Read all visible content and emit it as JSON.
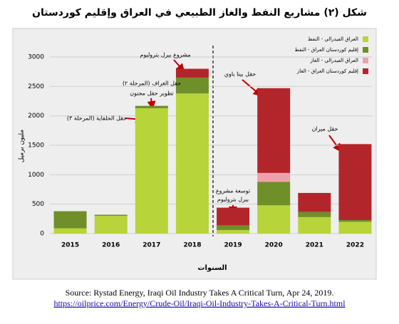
{
  "chart_data": {
    "type": "stacked-bar",
    "title": "شكل (٢) مشاريع النفط والغاز الطبيعي في العراق وإقليم كوردستان",
    "y_label": "مليون برميل",
    "x_label": "السنوات",
    "categories": [
      "2015",
      "2016",
      "2017",
      "2018",
      "2019",
      "2020",
      "2021",
      "2022"
    ],
    "series": [
      {
        "name": "العراق الفيدرالي - النفط",
        "color": "#b7d43a",
        "values": [
          90,
          300,
          2130,
          2380,
          60,
          480,
          280,
          200
        ]
      },
      {
        "name": "إقليم كوردستان العراق - النفط",
        "color": "#6f8f28",
        "values": [
          290,
          20,
          40,
          270,
          80,
          400,
          90,
          30
        ]
      },
      {
        "name": "العراق الفيدرالي - الغاز",
        "color": "#f0a0aa",
        "values": [
          0,
          0,
          0,
          0,
          0,
          150,
          0,
          0
        ]
      },
      {
        "name": "إقليم كوردستان العراق - الغاز",
        "color": "#b2262b",
        "values": [
          0,
          0,
          0,
          150,
          300,
          1440,
          320,
          1290
        ]
      }
    ],
    "ylim": [
      0,
      3200
    ],
    "yticks": [
      0,
      500,
      1000,
      1500,
      2000,
      2500,
      3000
    ],
    "grid": true,
    "legend": "top-right",
    "annotations": [
      "مشروع بيرل بتروليوم",
      "حقل الغراف (المرحلة ٢)",
      "تطوير حقل مجنون",
      "حقل الحلفاية (المرحلة ٣)",
      "حقل بينا باوي",
      "توسعة مشروع",
      "بيرل بتروليوم",
      "حقل ميران"
    ],
    "source": "Source: Rystad Energy, Iraqi Oil Industry Takes A Critical Turn, Apr 24, 2019.",
    "source_url": "https://oilprice.com/Energy/Crude-Oil/Iraqi-Oil-Industry-Takes-A-Critical-Turn.html"
  }
}
